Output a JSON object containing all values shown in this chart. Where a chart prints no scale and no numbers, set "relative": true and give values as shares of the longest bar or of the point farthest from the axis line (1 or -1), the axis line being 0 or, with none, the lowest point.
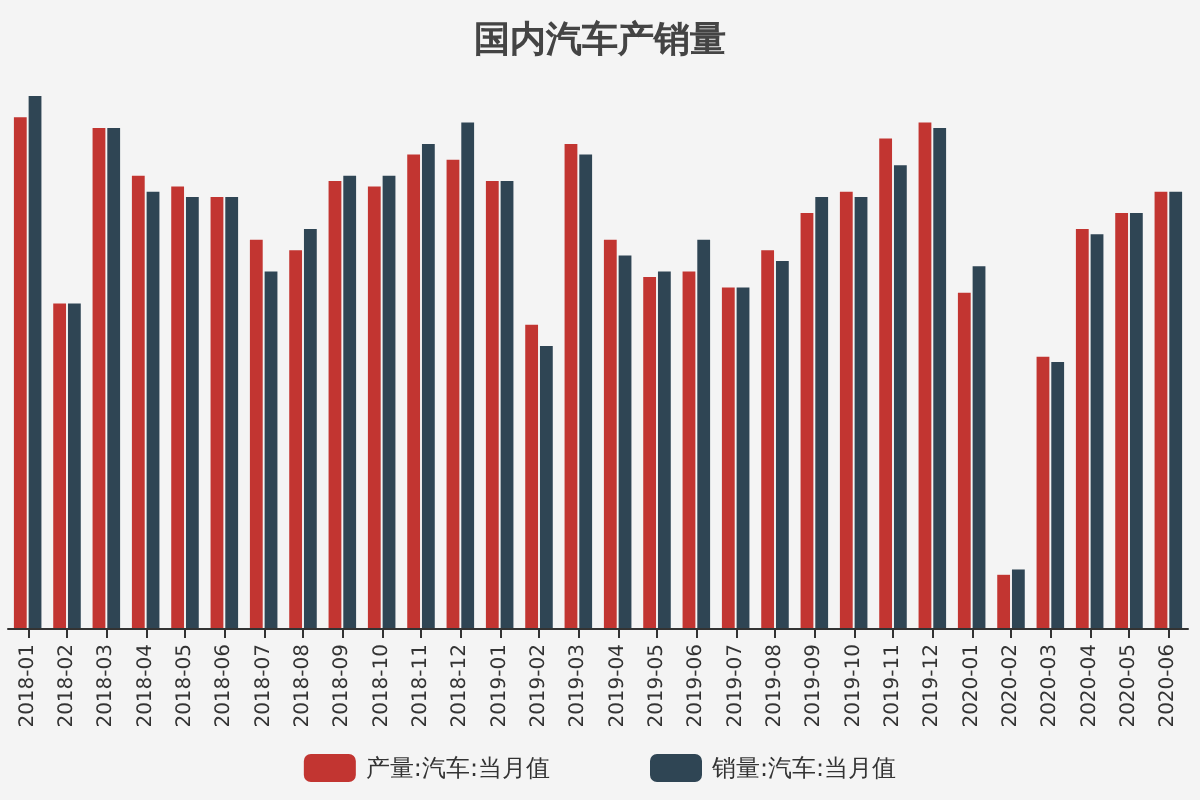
{
  "chart_data": {
    "type": "bar",
    "title": "国内汽车产销量",
    "relative": true,
    "legend": "bottom",
    "categories": [
      "2018-01",
      "2018-02",
      "2018-03",
      "2018-04",
      "2018-05",
      "2018-06",
      "2018-07",
      "2018-08",
      "2018-09",
      "2018-10",
      "2018-11",
      "2018-12",
      "2019-01",
      "2019-02",
      "2019-03",
      "2019-04",
      "2019-05",
      "2019-06",
      "2019-07",
      "2019-08",
      "2019-09",
      "2019-10",
      "2019-11",
      "2019-12",
      "2020-01",
      "2020-02",
      "2020-03",
      "2020-04",
      "2020-05",
      "2020-06"
    ],
    "series": [
      {
        "name": "产量:汽车:当月值",
        "color": "#c23531",
        "values": [
          0.96,
          0.61,
          0.94,
          0.85,
          0.83,
          0.81,
          0.73,
          0.71,
          0.84,
          0.83,
          0.89,
          0.88,
          0.84,
          0.57,
          0.91,
          0.73,
          0.66,
          0.67,
          0.64,
          0.71,
          0.78,
          0.82,
          0.92,
          0.95,
          0.63,
          0.1,
          0.51,
          0.75,
          0.78,
          0.82
        ]
      },
      {
        "name": "销量:汽车:当月值",
        "color": "#2f4554",
        "values": [
          1,
          0.61,
          0.94,
          0.82,
          0.81,
          0.81,
          0.67,
          0.75,
          0.85,
          0.85,
          0.91,
          0.95,
          0.84,
          0.53,
          0.89,
          0.7,
          0.67,
          0.73,
          0.64,
          0.69,
          0.81,
          0.81,
          0.87,
          0.94,
          0.68,
          0.11,
          0.5,
          0.74,
          0.78,
          0.82
        ]
      }
    ]
  }
}
